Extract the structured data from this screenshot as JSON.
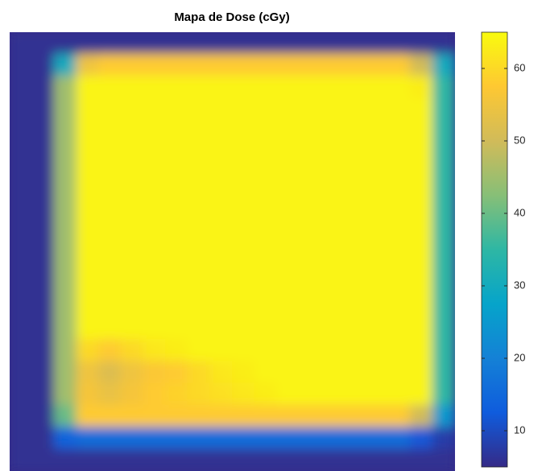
{
  "chart_data": {
    "type": "heatmap",
    "title": "Mapa de Dose (cGy)",
    "colormap": [
      "#352a87",
      "#0f5cdd",
      "#1481d6",
      "#06a4ca",
      "#2eb7a4",
      "#87bf77",
      "#d1bb59",
      "#fec832",
      "#f9fb0e"
    ],
    "clim": [
      5,
      65
    ],
    "cticks": [
      10,
      20,
      30,
      40,
      50,
      60
    ],
    "z": [
      [
        6,
        6,
        6,
        6,
        6,
        6,
        6,
        6,
        6,
        6,
        6,
        6,
        6,
        6,
        6,
        6,
        6,
        6,
        6,
        6
      ],
      [
        6,
        6,
        30,
        55,
        58,
        58,
        58,
        58,
        58,
        58,
        58,
        58,
        58,
        58,
        58,
        58,
        58,
        58,
        50,
        30
      ],
      [
        6,
        6,
        45,
        64,
        64,
        64,
        64,
        64,
        64,
        64,
        64,
        64,
        64,
        64,
        64,
        64,
        64,
        64,
        63,
        35
      ],
      [
        6,
        6,
        45,
        64,
        64,
        64,
        64,
        64,
        64,
        64,
        64,
        64,
        64,
        64,
        64,
        64,
        64,
        64,
        64,
        35
      ],
      [
        6,
        6,
        45,
        64,
        64,
        64,
        64,
        64,
        64,
        64,
        64,
        64,
        64,
        64,
        64,
        64,
        64,
        64,
        64,
        35
      ],
      [
        6,
        6,
        45,
        64,
        64,
        64,
        64,
        64,
        64,
        64,
        64,
        64,
        64,
        64,
        64,
        64,
        64,
        64,
        64,
        35
      ],
      [
        6,
        6,
        45,
        64,
        64,
        64,
        64,
        64,
        64,
        64,
        64,
        64,
        64,
        64,
        64,
        64,
        64,
        64,
        64,
        35
      ],
      [
        6,
        6,
        45,
        64,
        64,
        64,
        64,
        64,
        64,
        64,
        64,
        64,
        64,
        64,
        64,
        64,
        64,
        64,
        64,
        35
      ],
      [
        6,
        6,
        45,
        64,
        64,
        64,
        64,
        64,
        64,
        64,
        64,
        64,
        64,
        64,
        64,
        64,
        64,
        64,
        64,
        35
      ],
      [
        6,
        6,
        45,
        64,
        64,
        64,
        64,
        64,
        64,
        64,
        64,
        64,
        64,
        64,
        64,
        64,
        64,
        64,
        64,
        35
      ],
      [
        6,
        6,
        45,
        64,
        64,
        64,
        64,
        64,
        64,
        64,
        64,
        64,
        64,
        64,
        64,
        64,
        64,
        64,
        64,
        35
      ],
      [
        6,
        6,
        45,
        64,
        64,
        64,
        64,
        64,
        64,
        64,
        64,
        64,
        64,
        64,
        64,
        64,
        64,
        64,
        64,
        35
      ],
      [
        6,
        6,
        45,
        64,
        64,
        64,
        64,
        64,
        64,
        64,
        64,
        64,
        64,
        64,
        64,
        64,
        64,
        64,
        64,
        35
      ],
      [
        6,
        6,
        45,
        64,
        64,
        64,
        64,
        64,
        64,
        64,
        64,
        64,
        64,
        64,
        64,
        64,
        64,
        64,
        64,
        35
      ],
      [
        6,
        6,
        45,
        60,
        58,
        60,
        62,
        63,
        64,
        64,
        64,
        64,
        64,
        64,
        64,
        64,
        64,
        64,
        64,
        35
      ],
      [
        6,
        6,
        45,
        55,
        52,
        55,
        57,
        58,
        60,
        62,
        63,
        64,
        64,
        64,
        64,
        64,
        64,
        64,
        64,
        35
      ],
      [
        6,
        6,
        45,
        56,
        54,
        56,
        58,
        59,
        60,
        61,
        62,
        63,
        64,
        64,
        64,
        64,
        64,
        64,
        64,
        35
      ],
      [
        6,
        6,
        40,
        58,
        58,
        58,
        58,
        58,
        58,
        58,
        58,
        58,
        58,
        58,
        58,
        58,
        58,
        58,
        50,
        25
      ],
      [
        6,
        6,
        14,
        16,
        16,
        16,
        16,
        16,
        16,
        16,
        16,
        16,
        16,
        16,
        16,
        16,
        16,
        16,
        12,
        8
      ],
      [
        6,
        6,
        6,
        6,
        6,
        6,
        6,
        6,
        6,
        6,
        6,
        6,
        6,
        6,
        6,
        6,
        6,
        6,
        6,
        6
      ]
    ]
  }
}
